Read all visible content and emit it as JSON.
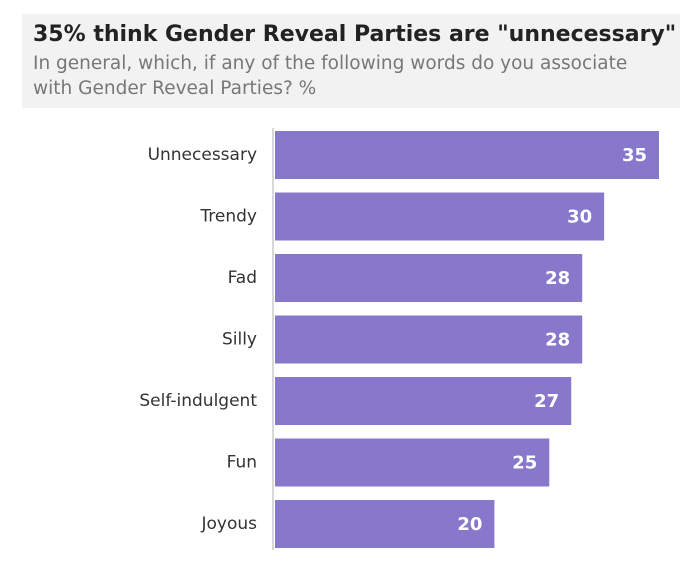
{
  "chart_data": {
    "type": "bar",
    "orientation": "horizontal",
    "title": "35% think Gender Reveal Parties are \"unnecessary\"",
    "subtitle": "In general, which, if any of the following words do you associate with Gender Reveal Parties? %",
    "categories": [
      "Unnecessary",
      "Trendy",
      "Fad",
      "Silly",
      "Self-indulgent",
      "Fun",
      "Joyous"
    ],
    "values": [
      35,
      30,
      28,
      28,
      27,
      25,
      20
    ],
    "color": "#8878cc"
  }
}
